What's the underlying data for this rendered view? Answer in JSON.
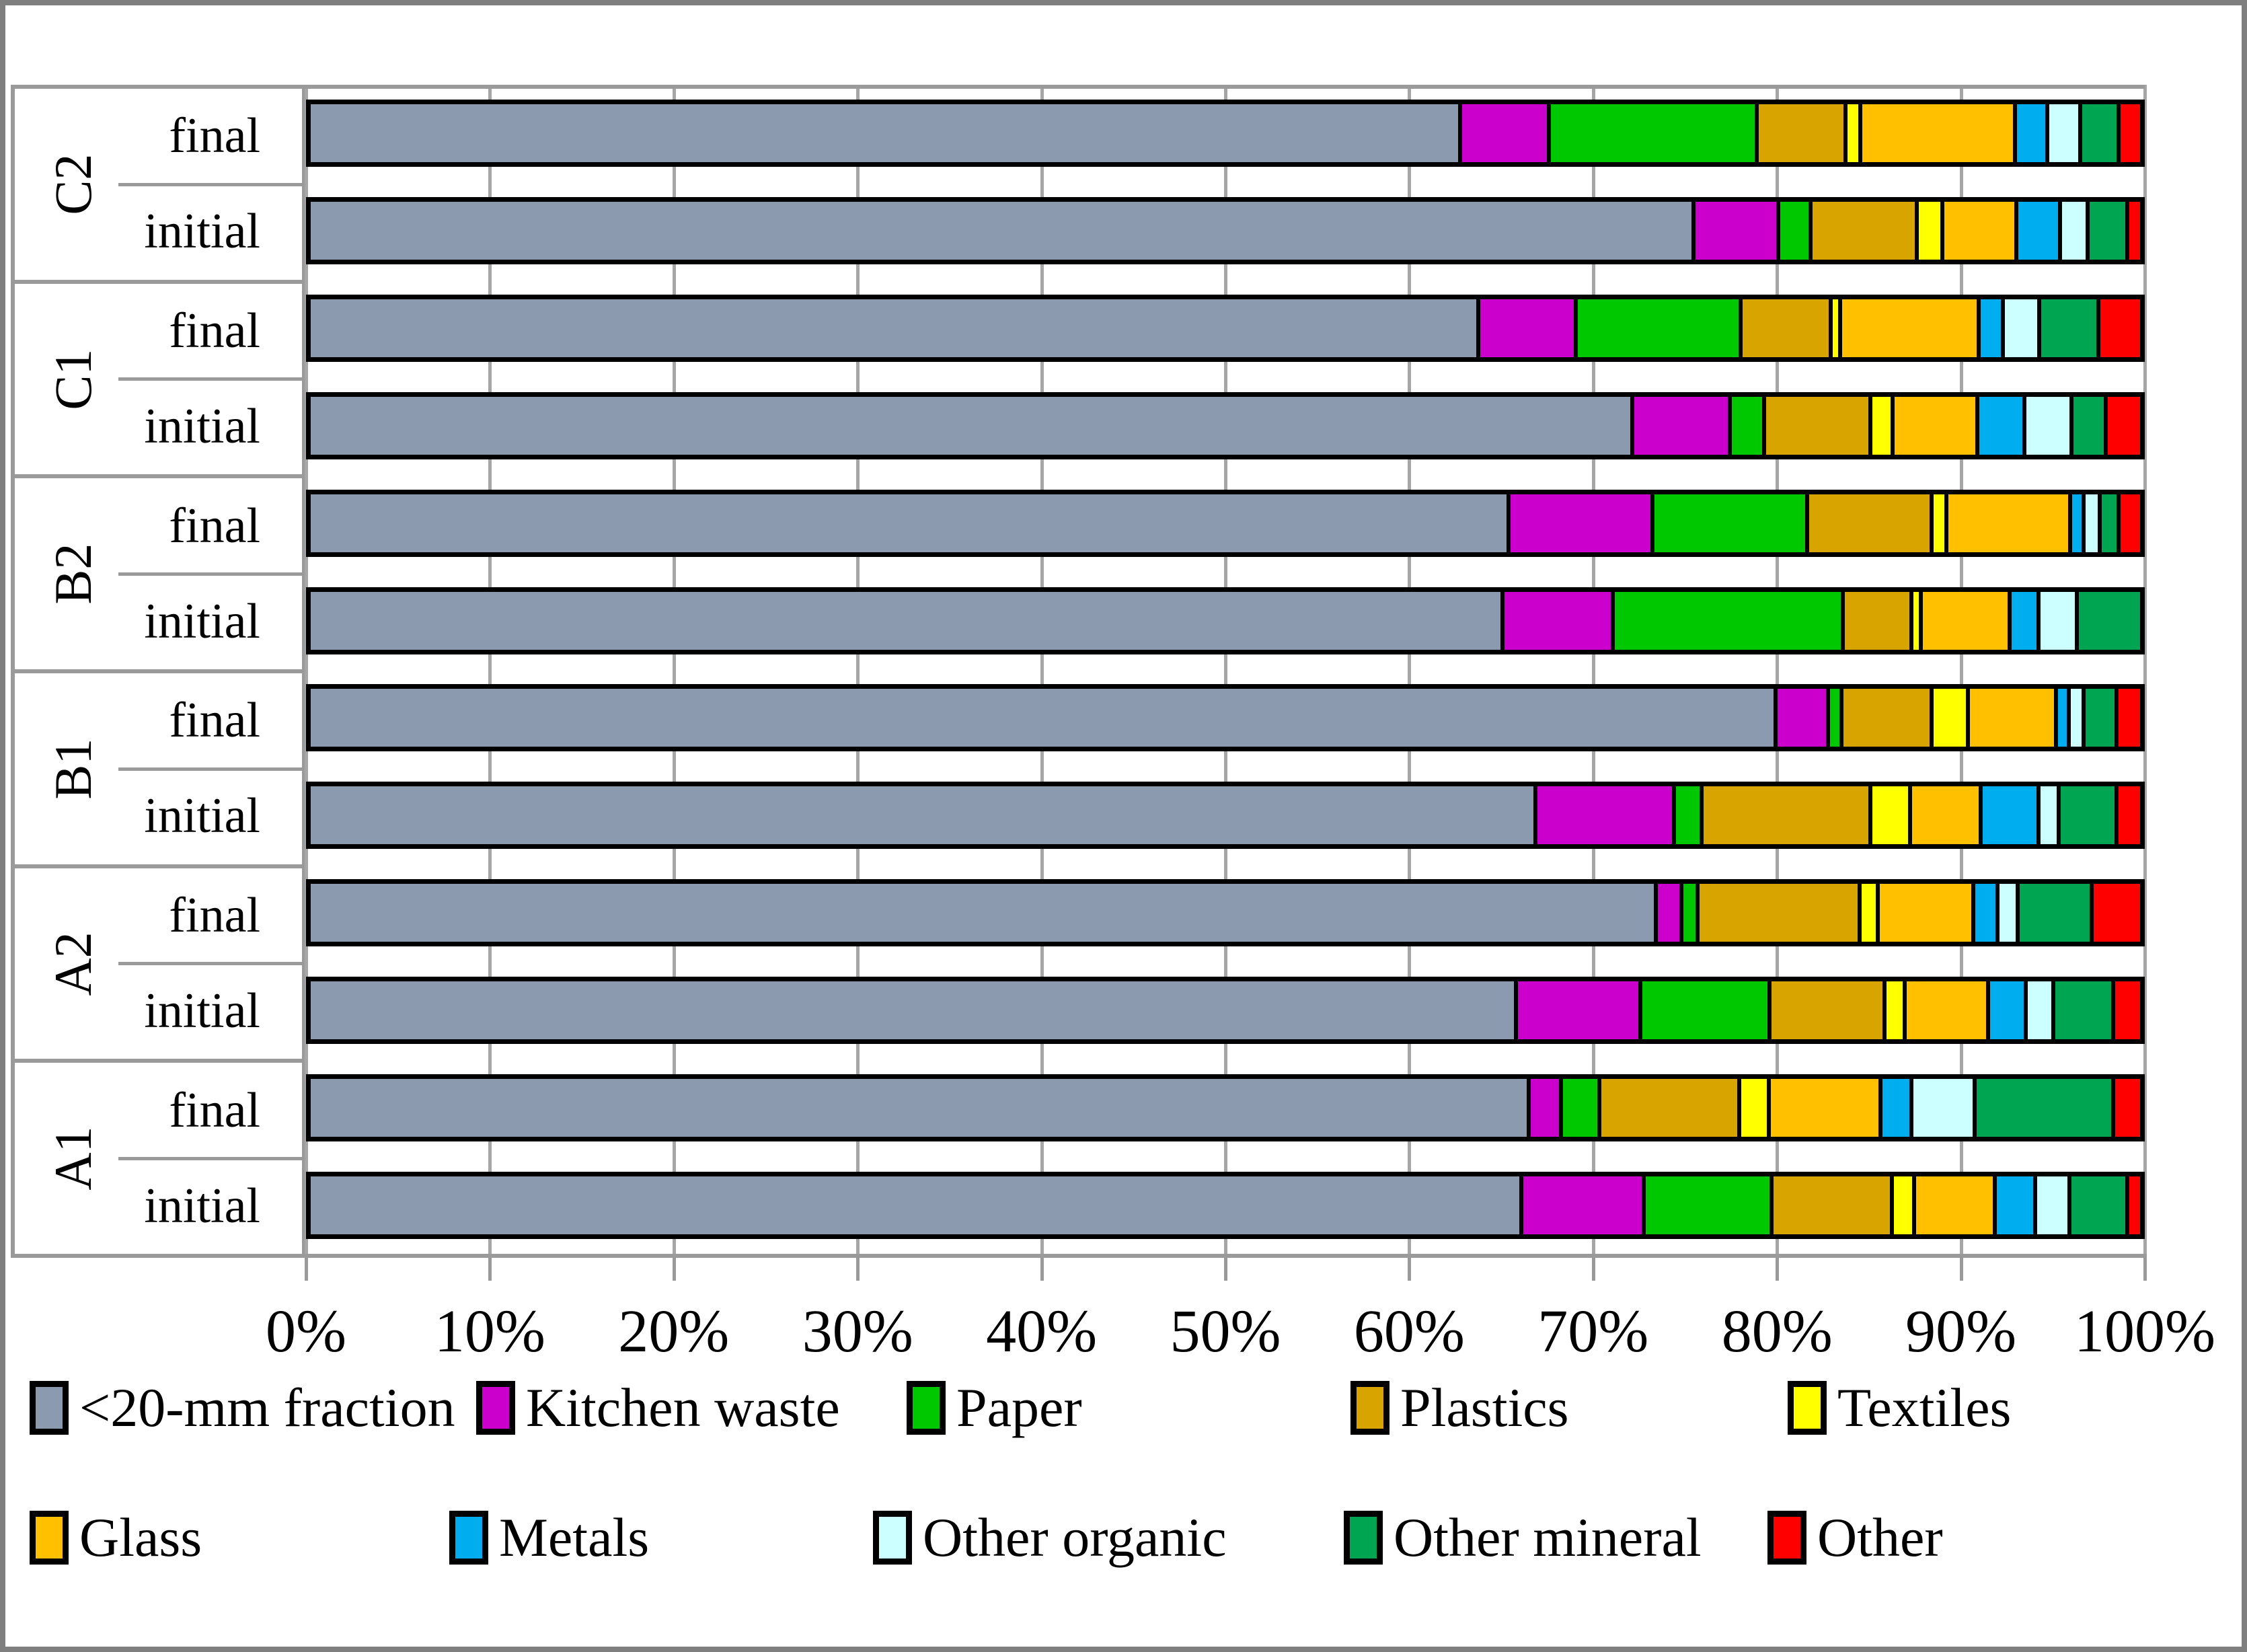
{
  "figure": {
    "background": "#ffffff",
    "frame_color": "#7f7f7f",
    "grid_color": "#a6a6a6"
  },
  "chart_data": {
    "type": "bar",
    "orientation": "horizontal",
    "stacked": true,
    "title": "",
    "xlabel": "",
    "ylabel": "",
    "xlim": [
      0,
      100
    ],
    "grid": "vertical-major-10pct",
    "legend_position": "bottom",
    "x_ticks": [
      "0%",
      "10%",
      "20%",
      "30%",
      "40%",
      "50%",
      "60%",
      "70%",
      "80%",
      "90%",
      "100%"
    ],
    "series_names": [
      "<20-mm fraction",
      "Kitchen waste",
      "Paper",
      "Plastics",
      "Textiles",
      "Glass",
      "Metals",
      "Other organic",
      "Other mineral",
      "Other"
    ],
    "series_colors": [
      "#8C9AAF",
      "#CC00CC",
      "#00C800",
      "#D8A400",
      "#FFFF00",
      "#FFC000",
      "#00AEEF",
      "#CCFFFF",
      "#00A551",
      "#FF0000"
    ],
    "groups": [
      {
        "label": "C2",
        "rows": [
          {
            "label": "final",
            "values": [
              64.0,
              4.7,
              11.4,
              4.7,
              0.6,
              8.4,
              1.6,
              1.6,
              1.9,
              1.1
            ]
          },
          {
            "label": "initial",
            "values": [
              77.0,
              4.5,
              1.6,
              5.7,
              1.2,
              3.9,
              2.2,
              1.3,
              2.0,
              0.6
            ]
          }
        ]
      },
      {
        "label": "C1",
        "rows": [
          {
            "label": "final",
            "values": [
              65.0,
              5.2,
              9.0,
              4.8,
              0.3,
              7.5,
              1.1,
              1.8,
              3.1,
              2.2
            ]
          },
          {
            "label": "initial",
            "values": [
              73.6,
              5.2,
              1.7,
              5.7,
              1.0,
              4.5,
              2.4,
              2.4,
              1.7,
              1.8
            ]
          }
        ]
      },
      {
        "label": "B2",
        "rows": [
          {
            "label": "final",
            "values": [
              66.7,
              7.8,
              8.4,
              6.7,
              0.6,
              6.7,
              0.5,
              0.7,
              0.8,
              1.1
            ]
          },
          {
            "label": "initial",
            "values": [
              66.2,
              5.9,
              12.6,
              3.6,
              0.3,
              4.7,
              1.4,
              1.9,
              3.4,
              0.0
            ]
          }
        ]
      },
      {
        "label": "B1",
        "rows": [
          {
            "label": "final",
            "values": [
              81.6,
              2.7,
              0.5,
              4.8,
              1.8,
              4.7,
              0.5,
              0.6,
              1.6,
              1.2
            ]
          },
          {
            "label": "initial",
            "values": [
              68.2,
              7.5,
              1.3,
              9.2,
              2.0,
              3.7,
              3.0,
              0.9,
              3.0,
              1.2
            ]
          }
        ]
      },
      {
        "label": "A2",
        "rows": [
          {
            "label": "final",
            "values": [
              74.9,
              1.2,
              0.7,
              8.8,
              0.8,
              5.1,
              1.1,
              0.9,
              3.9,
              2.6
            ]
          },
          {
            "label": "initial",
            "values": [
              67.1,
              6.7,
              7.0,
              6.2,
              0.9,
              4.4,
              1.9,
              1.3,
              3.1,
              1.4
            ]
          }
        ]
      },
      {
        "label": "A1",
        "rows": [
          {
            "label": "final",
            "values": [
              67.8,
              1.6,
              1.9,
              7.6,
              1.4,
              6.0,
              1.5,
              3.3,
              7.5,
              1.4
            ]
          },
          {
            "label": "initial",
            "values": [
              67.4,
              6.6,
              6.9,
              6.5,
              1.0,
              4.3,
              2.0,
              1.7,
              3.0,
              0.6
            ]
          }
        ]
      }
    ],
    "legend_rows": [
      [
        "<20-mm fraction",
        "Kitchen waste",
        "Paper",
        "Plastics",
        "Textiles"
      ],
      [
        "Glass",
        "Metals",
        "Other organic",
        "Other mineral",
        "Other"
      ]
    ]
  }
}
